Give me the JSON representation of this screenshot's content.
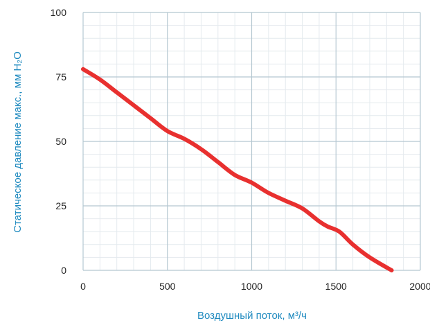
{
  "chart_data": {
    "type": "line",
    "title": "",
    "xlabel": "Воздушный поток, м³/ч",
    "ylabel": "Статическое давление макс., мм H₂O",
    "xlim": [
      0,
      2000
    ],
    "ylim": [
      0,
      100
    ],
    "xticks": [
      "0",
      "500",
      "1000",
      "1500",
      "2000"
    ],
    "yticks": [
      "0",
      "25",
      "50",
      "75",
      "100"
    ],
    "grid": true,
    "legend": "none",
    "colors": {
      "line": "#e8302f",
      "major_grid": "#b5c7d1",
      "minor_grid": "#e4eaee",
      "axis_title": "#1f8abf"
    },
    "series": [
      {
        "x": [
          0,
          100,
          200,
          300,
          400,
          500,
          600,
          700,
          800,
          900,
          1000,
          1100,
          1200,
          1300,
          1400,
          1450,
          1520,
          1600,
          1700,
          1830
        ],
        "values": [
          78,
          74,
          69,
          64,
          59,
          54,
          51,
          47,
          42,
          37,
          34,
          30,
          27,
          24,
          19,
          17,
          15,
          10,
          5,
          0
        ]
      }
    ]
  }
}
